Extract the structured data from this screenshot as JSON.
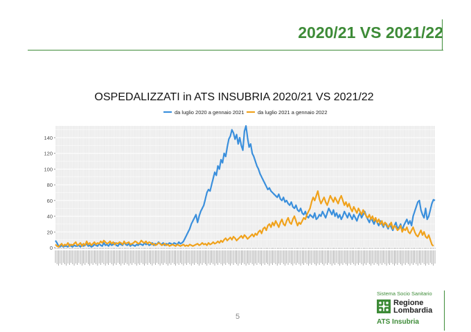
{
  "slide": {
    "title": "2020/21 VS 2021/22",
    "page_number": "5"
  },
  "logo": {
    "top_text": "Sistema Socio Sanitario",
    "name_line1": "Regione",
    "name_line2": "Lombardia",
    "subtitle": "ATS Insubria"
  },
  "colors": {
    "brand_green": "#3d8b37",
    "series_2020": "#3a8fdc",
    "series_2021": "#f0a21c",
    "panel_bg": "#ebebeb"
  },
  "chart_data": {
    "type": "line",
    "title": "OSPEDALIZZATI in ATS INSUBRIA  2020/21 VS 2021/22",
    "xlabel": "",
    "ylabel": "",
    "ylim": [
      0,
      155
    ],
    "y_ticks": [
      0,
      20,
      40,
      60,
      80,
      100,
      120,
      140
    ],
    "grid": true,
    "legend_position": "top",
    "x_tick_labels": "illegible daily date labels (one per day), rotated 90°",
    "series": [
      {
        "name": "da luglio 2020 a gennaio 2021",
        "color": "#3a8fdc",
        "values": [
          9,
          6,
          2,
          1,
          3,
          1,
          2,
          2,
          1,
          4,
          2,
          1,
          3,
          2,
          2,
          3,
          1,
          4,
          2,
          3,
          5,
          2,
          3,
          1,
          2,
          4,
          3,
          2,
          5,
          3,
          2,
          6,
          3,
          4,
          2,
          5,
          3,
          4,
          6,
          3,
          2,
          5,
          4,
          3,
          7,
          4,
          3,
          5,
          2,
          4,
          3,
          2,
          4,
          3,
          5,
          4,
          3,
          6,
          4,
          5,
          3,
          4,
          6,
          3,
          5,
          4,
          7,
          5,
          4,
          6,
          3,
          5,
          4,
          6,
          5,
          4,
          6,
          5,
          4,
          7,
          5,
          6,
          8,
          12,
          16,
          20,
          24,
          30,
          34,
          38,
          42,
          32,
          40,
          46,
          50,
          54,
          62,
          70,
          74,
          72,
          80,
          88,
          96,
          92,
          104,
          100,
          112,
          108,
          120,
          116,
          128,
          138,
          142,
          150,
          146,
          138,
          144,
          132,
          140,
          130,
          124,
          148,
          155,
          140,
          128,
          132,
          120,
          116,
          110,
          104,
          100,
          94,
          90,
          86,
          82,
          78,
          74,
          76,
          72,
          70,
          68,
          66,
          64,
          68,
          62,
          60,
          64,
          58,
          60,
          56,
          54,
          58,
          52,
          50,
          54,
          48,
          46,
          50,
          44,
          42,
          46,
          40,
          38,
          42,
          40,
          38,
          44,
          36,
          38,
          42,
          40,
          46,
          42,
          38,
          44,
          50,
          46,
          42,
          48,
          40,
          44,
          38,
          42,
          36,
          40,
          46,
          42,
          38,
          44,
          40,
          36,
          42,
          38,
          34,
          40,
          44,
          38,
          42,
          46,
          40,
          36,
          32,
          38,
          34,
          30,
          36,
          32,
          28,
          34,
          30,
          26,
          32,
          28,
          24,
          30,
          26,
          22,
          28,
          32,
          24,
          26,
          30,
          22,
          28,
          32,
          36,
          30,
          34,
          28,
          40,
          46,
          52,
          58,
          60,
          48,
          42,
          38,
          50,
          36,
          40,
          48,
          56,
          61,
          60
        ]
      },
      {
        "name": "da luglio 2021 a gennaio 2022",
        "color": "#f0a21c",
        "values": [
          4,
          2,
          1,
          3,
          5,
          2,
          4,
          3,
          6,
          2,
          4,
          3,
          5,
          7,
          3,
          4,
          6,
          2,
          5,
          3,
          8,
          4,
          6,
          3,
          5,
          7,
          4,
          6,
          5,
          8,
          6,
          9,
          7,
          5,
          6,
          8,
          5,
          7,
          4,
          6,
          5,
          7,
          6,
          4,
          8,
          5,
          6,
          7,
          4,
          5,
          6,
          8,
          7,
          5,
          6,
          9,
          7,
          6,
          8,
          5,
          7,
          6,
          4,
          5,
          3,
          4,
          6,
          5,
          3,
          4,
          5,
          3,
          4,
          2,
          3,
          4,
          3,
          2,
          4,
          3,
          2,
          3,
          4,
          2,
          3,
          2,
          4,
          3,
          2,
          3,
          4,
          5,
          3,
          4,
          6,
          4,
          5,
          3,
          6,
          4,
          5,
          7,
          5,
          6,
          8,
          6,
          9,
          7,
          10,
          12,
          9,
          11,
          13,
          10,
          14,
          12,
          9,
          11,
          13,
          15,
          12,
          16,
          14,
          11,
          13,
          15,
          17,
          14,
          18,
          16,
          20,
          22,
          18,
          24,
          26,
          22,
          28,
          30,
          26,
          32,
          28,
          34,
          30,
          26,
          32,
          36,
          30,
          28,
          34,
          38,
          32,
          30,
          36,
          40,
          34,
          28,
          32,
          30,
          34,
          38,
          36,
          42,
          46,
          50,
          58,
          64,
          60,
          66,
          72,
          62,
          56,
          60,
          64,
          58,
          54,
          60,
          66,
          62,
          58,
          64,
          60,
          56,
          62,
          66,
          60,
          54,
          58,
          52,
          56,
          50,
          46,
          52,
          48,
          44,
          50,
          46,
          42,
          48,
          44,
          40,
          38,
          42,
          36,
          40,
          34,
          38,
          32,
          36,
          30,
          34,
          28,
          32,
          30,
          26,
          28,
          32,
          24,
          28,
          26,
          22,
          24,
          28,
          20,
          24,
          22,
          26,
          20,
          18,
          22,
          26,
          20,
          16,
          14,
          18,
          22,
          16,
          20,
          14,
          12,
          16,
          10,
          4,
          2
        ]
      }
    ]
  }
}
